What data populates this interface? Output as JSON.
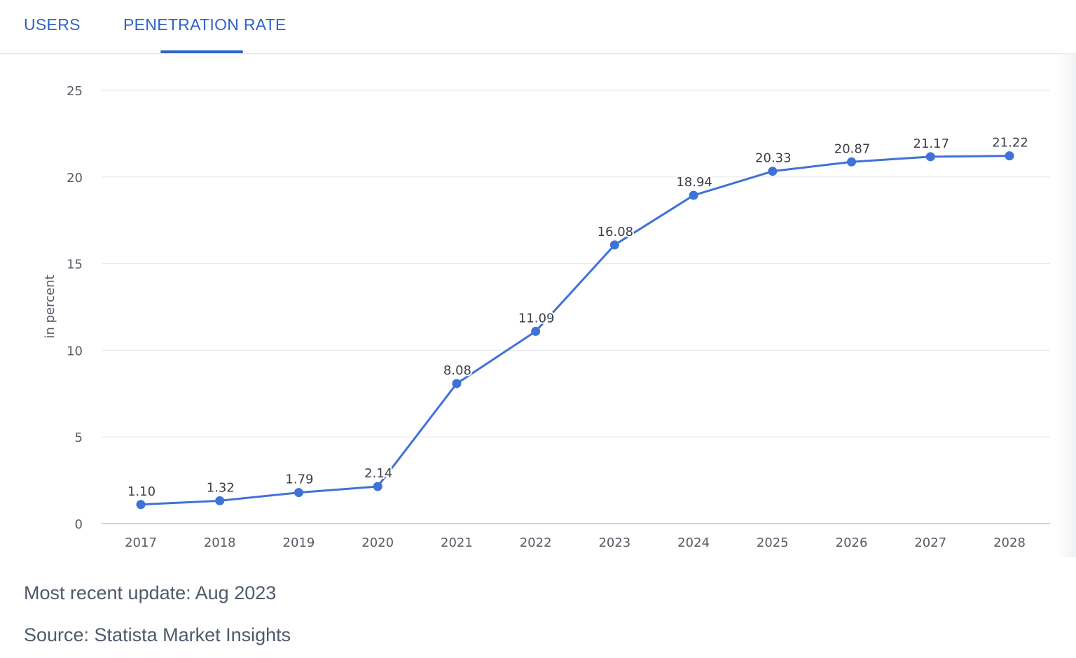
{
  "tabs": [
    {
      "label": "USERS",
      "active": false
    },
    {
      "label": "PENETRATION RATE",
      "active": true
    }
  ],
  "colors": {
    "accent": "#2f63c9",
    "series": "#3f72d6",
    "grid": "#e3e6eb",
    "axis": "#b9c3e8",
    "text": "#555b66"
  },
  "chart_data": {
    "type": "line",
    "title": "",
    "xlabel": "",
    "ylabel": "in percent",
    "ylim": [
      0,
      25
    ],
    "yticks": [
      0,
      5,
      10,
      15,
      20,
      25
    ],
    "grid": true,
    "categories": [
      "2017",
      "2018",
      "2019",
      "2020",
      "2021",
      "2022",
      "2023",
      "2024",
      "2025",
      "2026",
      "2027",
      "2028"
    ],
    "series": [
      {
        "name": "Penetration rate",
        "values": [
          1.1,
          1.32,
          1.79,
          2.14,
          8.08,
          11.09,
          16.08,
          18.94,
          20.33,
          20.87,
          21.17,
          21.22
        ],
        "labels": [
          "1.10",
          "1.32",
          "1.79",
          "2.14",
          "8.08",
          "11.09",
          "16.08",
          "18.94",
          "20.33",
          "20.87",
          "21.17",
          "21.22"
        ]
      }
    ]
  },
  "footer": {
    "update": "Most recent update: Aug 2023",
    "source": "Source: Statista Market Insights"
  }
}
